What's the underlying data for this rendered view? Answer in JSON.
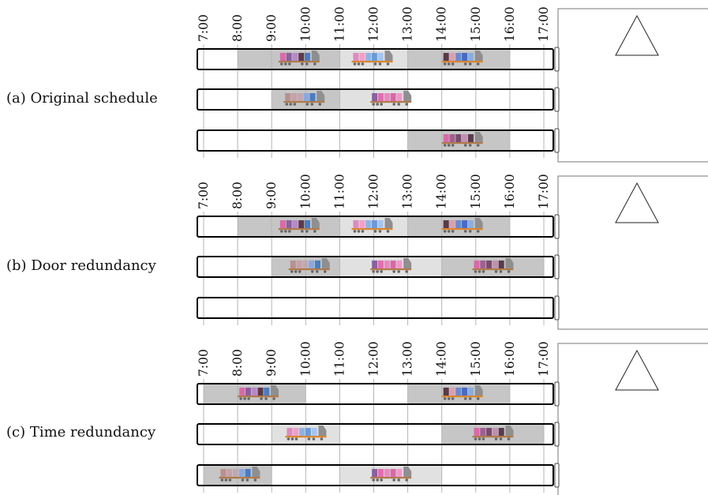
{
  "time_ticks": [
    "7:00",
    "8:00",
    "9:00",
    "10:00",
    "11:00",
    "12:00",
    "13:00",
    "14:00",
    "15:00",
    "16:00",
    "17:00"
  ],
  "time_range": {
    "start": 7,
    "end": 17.4
  },
  "colors": {
    "gridline": "#b5b5b5",
    "slot_dark": "#c6c6c6",
    "slot_light": "#e1e1e1",
    "door_outline": "#000000",
    "building_outline": "#777777",
    "truck_cab": "#8f8f8f",
    "truck_chassis": "#d9862f",
    "wheel": "#666666"
  },
  "panels": [
    {
      "label": "(a) Original schedule",
      "doors": [
        {
          "slots": [
            {
              "start": 8,
              "end": 11,
              "shade": "dark",
              "truck_at": 9.2,
              "cargo": [
                "#d96aa8",
                "#8a5fa0",
                "#b889c4",
                "#5a3a4a",
                "#4a7cc0"
              ]
            },
            {
              "start": 11,
              "end": 13,
              "shade": "light",
              "truck_at": 11.35,
              "cargo": [
                "#e08ac0",
                "#f0a0c8",
                "#8fb4e4",
                "#6a9ad8",
                "#a8c4ec"
              ],
              "flat": true
            },
            {
              "start": 13,
              "end": 16,
              "shade": "dark",
              "truck_at": 14.0,
              "cargo": [
                "#5a3a4a",
                "#d9a0b0",
                "#6a8ad0",
                "#4a6ac0",
                "#8aaee0"
              ],
              "flat": true
            }
          ]
        },
        {
          "slots": [
            {
              "start": 9,
              "end": 11,
              "shade": "dark",
              "truck_at": 9.35,
              "cargo": [
                "#b89090",
                "#c8a0a8",
                "#c0a8b0",
                "#8aa8e0",
                "#4a7cc0"
              ]
            },
            {
              "start": 11,
              "end": 13,
              "shade": "light",
              "truck_at": 11.9,
              "cargo": [
                "#8a5fa0",
                "#e070b0",
                "#e888c0",
                "#d868a8",
                "#f098c8"
              ]
            }
          ]
        },
        {
          "slots": [
            {
              "start": 13,
              "end": 16,
              "shade": "dark",
              "truck_at": 14.0,
              "cargo": [
                "#d96aa8",
                "#a06090",
                "#7a4a70",
                "#c090b0",
                "#5a3a4a"
              ]
            }
          ]
        }
      ]
    },
    {
      "label": "(b) Door redundancy",
      "doors": [
        {
          "slots": [
            {
              "start": 8,
              "end": 11,
              "shade": "dark",
              "truck_at": 9.2,
              "cargo": [
                "#d96aa8",
                "#8a5fa0",
                "#b889c4",
                "#5a3a4a",
                "#4a7cc0"
              ]
            },
            {
              "start": 11,
              "end": 13,
              "shade": "light",
              "truck_at": 11.35,
              "cargo": [
                "#e08ac0",
                "#f0a0c8",
                "#8fb4e4",
                "#6a9ad8",
                "#a8c4ec"
              ],
              "flat": true
            },
            {
              "start": 13,
              "end": 16,
              "shade": "dark",
              "truck_at": 14.0,
              "cargo": [
                "#5a3a4a",
                "#d9a0b0",
                "#6a8ad0",
                "#4a6ac0",
                "#8aaee0"
              ],
              "flat": true
            }
          ]
        },
        {
          "slots": [
            {
              "start": 9,
              "end": 11,
              "shade": "dark",
              "truck_at": 9.5,
              "cargo": [
                "#b89090",
                "#c8a0a8",
                "#c0a8b0",
                "#8aa8e0",
                "#4a7cc0"
              ]
            },
            {
              "start": 11,
              "end": 14,
              "shade": "light",
              "truck_at": 11.9,
              "cargo": [
                "#8a5fa0",
                "#e070b0",
                "#e888c0",
                "#d868a8",
                "#f098c8"
              ]
            },
            {
              "start": 14,
              "end": 17,
              "shade": "dark",
              "truck_at": 14.9,
              "cargo": [
                "#d96aa8",
                "#a06090",
                "#7a4a70",
                "#c090b0",
                "#5a3a4a"
              ]
            }
          ]
        },
        {
          "slots": []
        }
      ]
    },
    {
      "label": "(c) Time redundancy",
      "doors": [
        {
          "slots": [
            {
              "start": 7,
              "end": 10,
              "shade": "dark",
              "truck_at": 8.0,
              "cargo": [
                "#d96aa8",
                "#8a5fa0",
                "#b889c4",
                "#5a3a4a",
                "#4a7cc0"
              ]
            },
            {
              "start": 13,
              "end": 16,
              "shade": "dark",
              "truck_at": 14.0,
              "cargo": [
                "#5a3a4a",
                "#d9a0b0",
                "#6a8ad0",
                "#4a6ac0",
                "#8aaee0"
              ],
              "flat": true
            }
          ]
        },
        {
          "slots": [
            {
              "start": 9,
              "end": 11,
              "shade": "light",
              "truck_at": 9.4,
              "cargo": [
                "#e08ac0",
                "#f0a0c8",
                "#8fb4e4",
                "#6a9ad8",
                "#a8c4ec"
              ],
              "flat": true
            },
            {
              "start": 14,
              "end": 17,
              "shade": "dark",
              "truck_at": 14.9,
              "cargo": [
                "#d96aa8",
                "#a06090",
                "#7a4a70",
                "#c090b0",
                "#5a3a4a"
              ]
            }
          ]
        },
        {
          "slots": [
            {
              "start": 7,
              "end": 9,
              "shade": "dark",
              "truck_at": 7.45,
              "cargo": [
                "#b89090",
                "#c8a0a8",
                "#c0a8b0",
                "#8aa8e0",
                "#4a7cc0"
              ]
            },
            {
              "start": 11,
              "end": 14,
              "shade": "light",
              "truck_at": 11.9,
              "cargo": [
                "#8a5fa0",
                "#e070b0",
                "#e888c0",
                "#d868a8",
                "#f098c8"
              ]
            }
          ]
        }
      ]
    }
  ]
}
